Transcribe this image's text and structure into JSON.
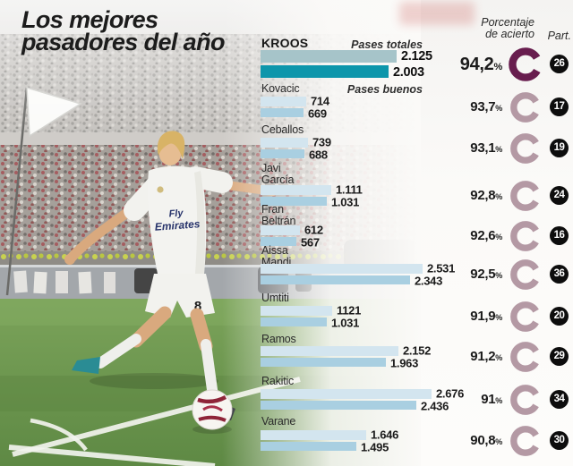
{
  "title": {
    "line1": "Los mejores",
    "line2": "pasadores del año"
  },
  "column_headers": {
    "accuracy_line1": "Porcentaje",
    "accuracy_line2": "de acierto",
    "matches": "Part."
  },
  "legend": {
    "total": "Pases totales",
    "good": "Pases buenos",
    "pct_suffix": "%"
  },
  "photo": {
    "jersey_sponsor_line1": "Fly",
    "jersey_sponsor_line2": "Emirates",
    "shorts_number": "8"
  },
  "colors": {
    "bar_total": "#d3e5ef",
    "bar_good": "#a9cfe1",
    "bar_total_highlight": "#a6c4c9",
    "bar_good_highlight": "#0d96ab",
    "ring": "#b499a4",
    "ring_highlight": "#681d4e",
    "badge_bg": "#0d0d0d",
    "badge_text": "#ffffff",
    "pitch_green": "#6f9950",
    "title_text": "#1c1c1c"
  },
  "chart_data": {
    "type": "bar",
    "orientation": "horizontal",
    "series_labels": [
      "Pases totales",
      "Pases buenos"
    ],
    "value_range": [
      0,
      2676
    ],
    "players": [
      {
        "name": "KROOS",
        "name_lines": [
          "KROOS"
        ],
        "pases_totales": 2125,
        "pases_totales_label": "2.125",
        "pases_buenos": 2003,
        "pases_buenos_label": "2.003",
        "porcentaje_acierto": "94,2",
        "partidos": "26",
        "highlight": true
      },
      {
        "name": "Kovacic",
        "name_lines": [
          "Kovacic"
        ],
        "pases_totales": 714,
        "pases_totales_label": "714",
        "pases_buenos": 669,
        "pases_buenos_label": "669",
        "porcentaje_acierto": "93,7",
        "partidos": "17",
        "highlight": false
      },
      {
        "name": "Ceballos",
        "name_lines": [
          "Ceballos"
        ],
        "pases_totales": 739,
        "pases_totales_label": "739",
        "pases_buenos": 688,
        "pases_buenos_label": "688",
        "porcentaje_acierto": "93,1",
        "partidos": "19",
        "highlight": false
      },
      {
        "name": "Javi García",
        "name_lines": [
          "Javi",
          "García"
        ],
        "pases_totales": 1111,
        "pases_totales_label": "1.111",
        "pases_buenos": 1031,
        "pases_buenos_label": "1.031",
        "porcentaje_acierto": "92,8",
        "partidos": "24",
        "highlight": false
      },
      {
        "name": "Fran Beltrán",
        "name_lines": [
          "Fran",
          "Beltrán"
        ],
        "pases_totales": 612,
        "pases_totales_label": "612",
        "pases_buenos": 567,
        "pases_buenos_label": "567",
        "porcentaje_acierto": "92,6",
        "partidos": "16",
        "highlight": false
      },
      {
        "name": "Aissa Mandi",
        "name_lines": [
          "Aissa",
          "Mandi"
        ],
        "pases_totales": 2531,
        "pases_totales_label": "2.531",
        "pases_buenos": 2343,
        "pases_buenos_label": "2.343",
        "porcentaje_acierto": "92,5",
        "partidos": "36",
        "highlight": false
      },
      {
        "name": "Umtiti",
        "name_lines": [
          "Umtiti"
        ],
        "pases_totales": 1121,
        "pases_totales_label": "1121",
        "pases_buenos": 1031,
        "pases_buenos_label": "1.031",
        "porcentaje_acierto": "91,9",
        "partidos": "20",
        "highlight": false
      },
      {
        "name": "Ramos",
        "name_lines": [
          "Ramos"
        ],
        "pases_totales": 2152,
        "pases_totales_label": "2.152",
        "pases_buenos": 1963,
        "pases_buenos_label": "1.963",
        "porcentaje_acierto": "91,2",
        "partidos": "29",
        "highlight": false
      },
      {
        "name": "Rakitic",
        "name_lines": [
          "Rakitic"
        ],
        "pases_totales": 2676,
        "pases_totales_label": "2.676",
        "pases_buenos": 2436,
        "pases_buenos_label": "2.436",
        "porcentaje_acierto": "91",
        "partidos": "34",
        "highlight": false
      },
      {
        "name": "Varane",
        "name_lines": [
          "Varane"
        ],
        "pases_totales": 1646,
        "pases_totales_label": "1.646",
        "pases_buenos": 1495,
        "pases_buenos_label": "1.495",
        "porcentaje_acierto": "90,8",
        "partidos": "30",
        "highlight": false
      }
    ]
  }
}
